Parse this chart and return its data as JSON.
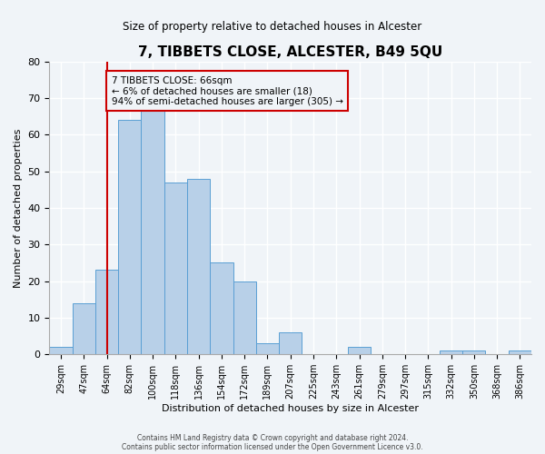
{
  "title": "7, TIBBETS CLOSE, ALCESTER, B49 5QU",
  "subtitle": "Size of property relative to detached houses in Alcester",
  "xlabel": "Distribution of detached houses by size in Alcester",
  "ylabel": "Number of detached properties",
  "bar_labels": [
    "29sqm",
    "47sqm",
    "64sqm",
    "82sqm",
    "100sqm",
    "118sqm",
    "136sqm",
    "154sqm",
    "172sqm",
    "189sqm",
    "207sqm",
    "225sqm",
    "243sqm",
    "261sqm",
    "279sqm",
    "297sqm",
    "315sqm",
    "332sqm",
    "350sqm",
    "368sqm",
    "386sqm"
  ],
  "bar_values": [
    2,
    14,
    23,
    64,
    67,
    47,
    48,
    25,
    20,
    3,
    6,
    0,
    0,
    2,
    0,
    0,
    0,
    1,
    1,
    0,
    1
  ],
  "bar_color": "#b8d0e8",
  "bar_edge_color": "#5a9fd4",
  "ylim": [
    0,
    80
  ],
  "yticks": [
    0,
    10,
    20,
    30,
    40,
    50,
    60,
    70,
    80
  ],
  "vline_x": 2.0,
  "vline_color": "#cc0000",
  "annotation_lines": [
    "7 TIBBETS CLOSE: 66sqm",
    "← 6% of detached houses are smaller (18)",
    "94% of semi-detached houses are larger (305) →"
  ],
  "annotation_box_color": "#cc0000",
  "footer_lines": [
    "Contains HM Land Registry data © Crown copyright and database right 2024.",
    "Contains public sector information licensed under the Open Government Licence v3.0."
  ],
  "background_color": "#f0f4f8",
  "grid_color": "#ffffff"
}
